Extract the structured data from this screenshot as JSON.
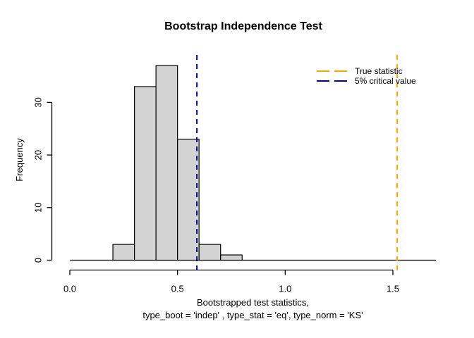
{
  "figure": {
    "title": "Bootstrap Independence Test",
    "ylab": "Frequency",
    "xlab_line1": "Bootstrapped test statistics,",
    "xlab_line2": "type_boot = 'indep' , type_stat = 'eq', type_norm = 'KS'"
  },
  "legend": {
    "items": [
      {
        "label": "True statistic",
        "color": "#FFA500"
      },
      {
        "label": "5% critical value",
        "color": "#000080"
      }
    ]
  },
  "chart_data": {
    "type": "bar",
    "subtype": "histogram",
    "title": "Bootstrap Independence Test",
    "xlabel": "Bootstrapped test statistics, type_boot = 'indep' , type_stat = 'eq', type_norm = 'KS'",
    "ylabel": "Frequency",
    "bin_breaks": [
      0.2,
      0.3,
      0.4,
      0.5,
      0.6,
      0.7,
      0.8
    ],
    "counts": [
      3,
      33,
      37,
      23,
      3,
      1
    ],
    "x_ticks": [
      0.0,
      0.5,
      1.0,
      1.5
    ],
    "x_tick_labels": [
      "0.0",
      "0.5",
      "1.0",
      "1.5"
    ],
    "y_ticks": [
      0,
      10,
      20,
      30
    ],
    "y_tick_labels": [
      "0",
      "10",
      "20",
      "30"
    ],
    "xlim": [
      0,
      1.7
    ],
    "ylim": [
      0,
      37
    ],
    "grid": false,
    "bar_fill": "#D3D3D3",
    "bar_stroke": "#000000",
    "baseline_extent": [
      0,
      1.7
    ],
    "vlines": [
      {
        "value": 0.59,
        "color": "#000080",
        "label": "5% critical value",
        "style": "dashed"
      },
      {
        "value": 1.52,
        "color": "#FFA500",
        "label": "True statistic",
        "style": "dashed"
      }
    ],
    "legend_position": "topright"
  }
}
